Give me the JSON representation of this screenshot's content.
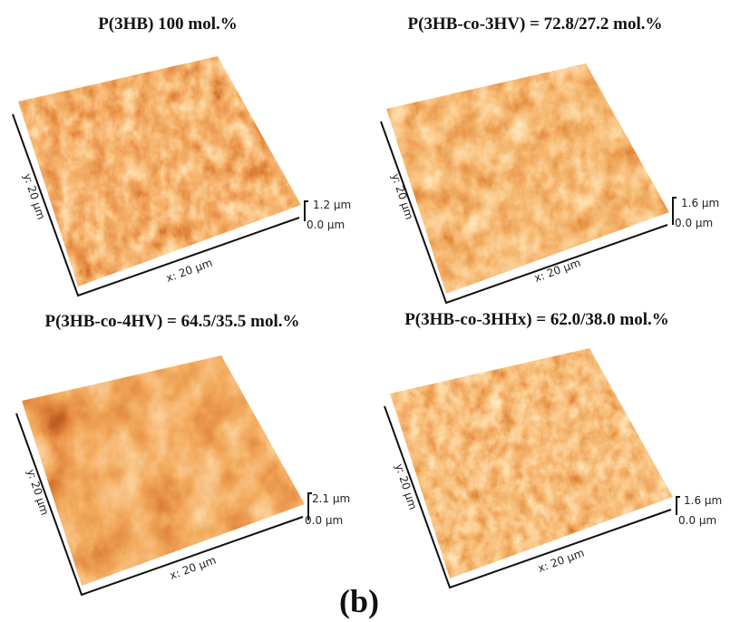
{
  "panel_label": "(b)",
  "panels": [
    {
      "title": "P(3HB) 100 mol.%",
      "y_label": "y: 20 µm",
      "x_label": "x: 20 µm",
      "z_max": "1.2 µm",
      "z_min": "0.0 µm"
    },
    {
      "title": "P(3HB-co-3HV) = 72.8/27.2 mol.%",
      "y_label": "y: 20 µm",
      "x_label": "x: 20 µm",
      "z_max": "1.6 µm",
      "z_min": "0.0 µm"
    },
    {
      "title": "P(3HB-co-4HV) = 64.5/35.5 mol.%",
      "y_label": "y: 20 µm",
      "x_label": "x: 20 µm",
      "z_max": "2.1 µm",
      "z_min": "0.0 µm"
    },
    {
      "title": "P(3HB-co-3HHx) = 62.0/38.0 mol.%",
      "y_label": "y: 20 µm",
      "x_label": "x: 20 µm",
      "z_max": "1.6 µm",
      "z_min": "0.0 µm"
    }
  ]
}
